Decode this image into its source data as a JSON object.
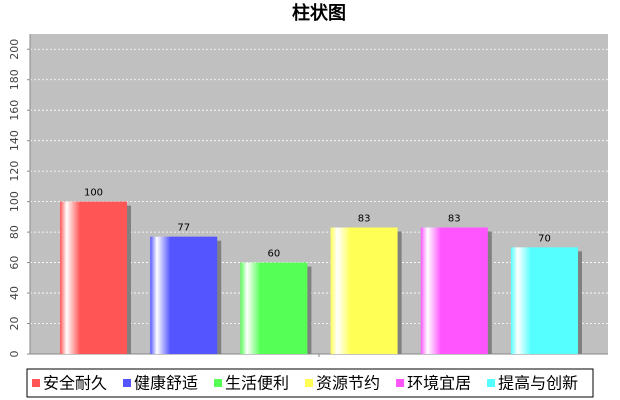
{
  "chart_data": {
    "type": "bar",
    "title": "柱状图",
    "categories": [
      null
    ],
    "series": [
      {
        "name": "安全耐久",
        "color": "#ff5555",
        "values": [
          100
        ]
      },
      {
        "name": "健康舒适",
        "color": "#5555ff",
        "values": [
          77
        ]
      },
      {
        "name": "生活便利",
        "color": "#55ff55",
        "values": [
          60
        ]
      },
      {
        "name": "资源节约",
        "color": "#ffff55",
        "values": [
          83
        ]
      },
      {
        "name": "环境宜居",
        "color": "#ff55ff",
        "values": [
          83
        ]
      },
      {
        "name": "提高与创新",
        "color": "#55ffff",
        "values": [
          70
        ]
      }
    ],
    "ylim": [
      0,
      210
    ],
    "yticks": [
      0,
      20,
      40,
      60,
      80,
      100,
      120,
      140,
      160,
      180,
      200
    ],
    "grid": true,
    "legend": "bottom"
  }
}
